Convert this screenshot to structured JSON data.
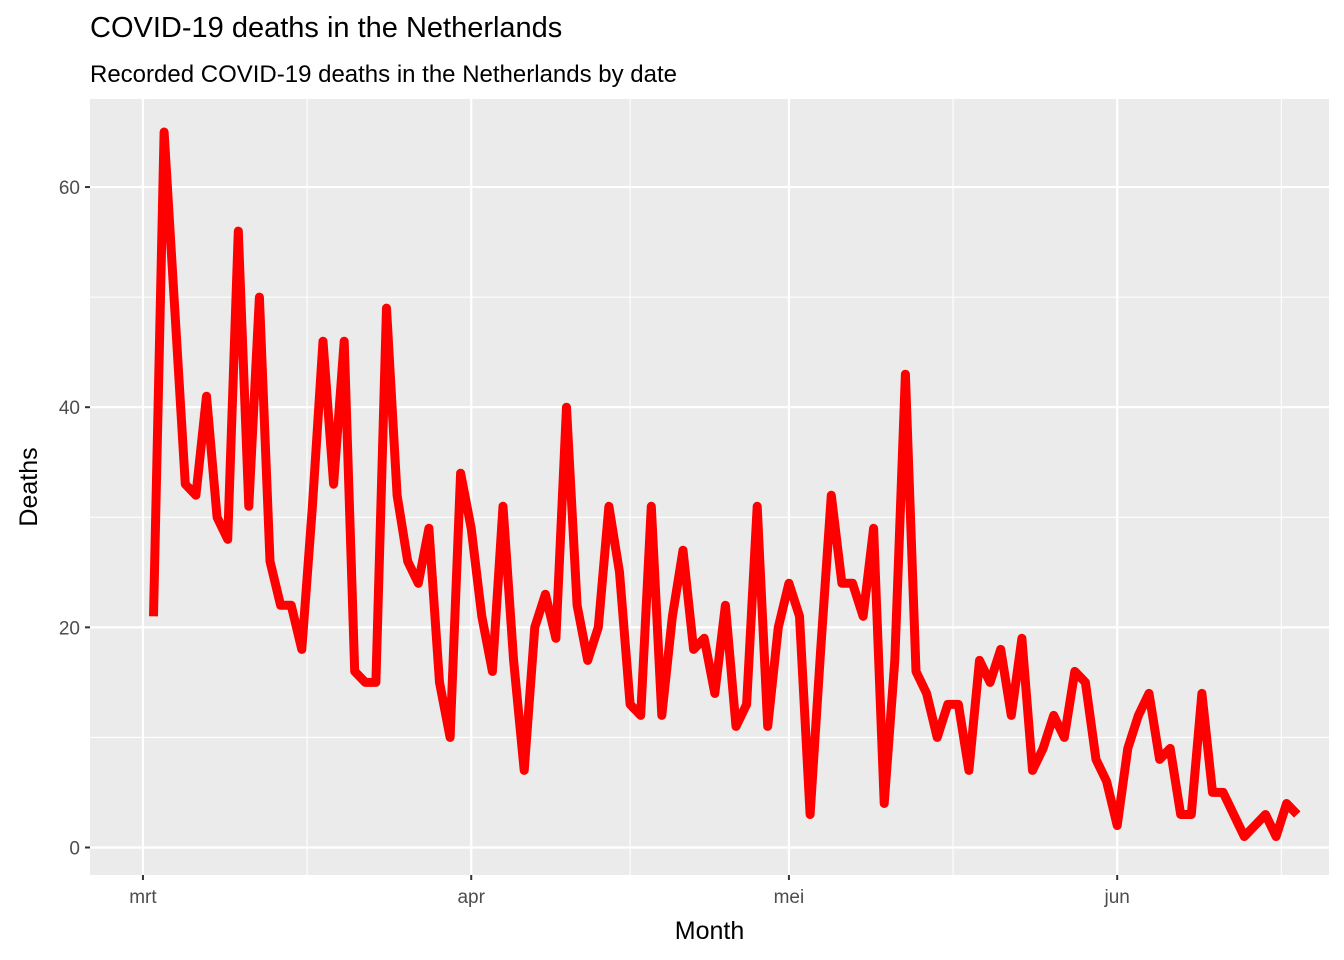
{
  "chart_data": {
    "type": "line",
    "title": "COVID-19 deaths in the Netherlands",
    "subtitle": "Recorded COVID-19 deaths in the Netherlands by date",
    "xlabel": "Month",
    "ylabel": "Deaths",
    "x_tick_labels": [
      {
        "date": "2020-03-01",
        "label": "mrt"
      },
      {
        "date": "2020-04-01",
        "label": "apr"
      },
      {
        "date": "2020-05-01",
        "label": "mei"
      },
      {
        "date": "2020-06-01",
        "label": "jun"
      }
    ],
    "y_ticks": [
      0,
      20,
      40,
      60
    ],
    "xlim": [
      "2020-02-25",
      "2020-06-21"
    ],
    "ylim": [
      -2.5,
      68
    ],
    "grid": true,
    "line_color": "#ff0000",
    "background_color": "#ebebeb",
    "grid_color": "#ffffff",
    "series": [
      {
        "start_date": "2020-03-02",
        "values": [
          21,
          65,
          49,
          33,
          32,
          41,
          30,
          28,
          56,
          31,
          50,
          26,
          22,
          22,
          18,
          31,
          46,
          33,
          46,
          16,
          15,
          15,
          49,
          32,
          26,
          24,
          29,
          15,
          10,
          34,
          29,
          21,
          16,
          31,
          17,
          7,
          20,
          23,
          19,
          40,
          22,
          17,
          20,
          31,
          25,
          13,
          12,
          31,
          12,
          21,
          27,
          18,
          19,
          14,
          22,
          11,
          13,
          31,
          11,
          20,
          24,
          21,
          3,
          18,
          32,
          24,
          24,
          21,
          29,
          4,
          17,
          43,
          16,
          14,
          10,
          13,
          13,
          7,
          17,
          15,
          18,
          12,
          19,
          7,
          9,
          12,
          10,
          16,
          15,
          8,
          6,
          2,
          9,
          12,
          14,
          8,
          9,
          3,
          3,
          14,
          5,
          5,
          3,
          1,
          2,
          3,
          1,
          4,
          3
        ]
      }
    ]
  }
}
